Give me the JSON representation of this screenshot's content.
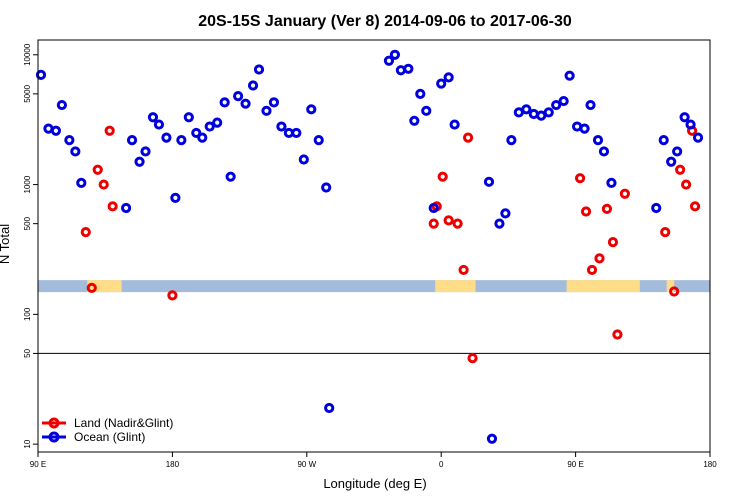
{
  "chart_data": {
    "type": "scatter",
    "title": "20S-15S January (Ver 8)   2014-09-06 to 2017-06-30",
    "xlabel": "Longitude (deg E)",
    "ylabel": "N Total",
    "xlim": [
      90,
      540
    ],
    "ylim": [
      8.7,
      13000
    ],
    "y_scale": "log",
    "x_ticks": [
      {
        "value": 90,
        "label": "90 E"
      },
      {
        "value": 180,
        "label": "180"
      },
      {
        "value": 270,
        "label": "90 W"
      },
      {
        "value": 360,
        "label": "0"
      },
      {
        "value": 450,
        "label": "90 E"
      },
      {
        "value": 540,
        "label": "180"
      }
    ],
    "y_ticks": [
      {
        "value": 10,
        "label": "10"
      },
      {
        "value": 50,
        "label": "50"
      },
      {
        "value": 100,
        "label": "100"
      },
      {
        "value": 500,
        "label": "500"
      },
      {
        "value": 1000,
        "label": "1000"
      },
      {
        "value": 5000,
        "label": "5000"
      },
      {
        "value": 10000,
        "label": "10000"
      }
    ],
    "reference_line": 50,
    "legend_position": "bottom-left",
    "land_strip": {
      "y": 165,
      "ocean_color": "#a4bcdc",
      "land_color": "#ffdd88",
      "land_ranges": [
        [
          123,
          146
        ],
        [
          356,
          383
        ],
        [
          444,
          493
        ],
        [
          511,
          516
        ]
      ]
    },
    "series": [
      {
        "name": "Land (Nadir&Glint)",
        "color": "#ee0000",
        "points": [
          [
            122,
            430
          ],
          [
            126,
            160
          ],
          [
            130,
            1300
          ],
          [
            134,
            1000
          ],
          [
            138,
            2600
          ],
          [
            140,
            680
          ],
          [
            180,
            140
          ],
          [
            355,
            500
          ],
          [
            357,
            680
          ],
          [
            361,
            1150
          ],
          [
            365,
            530
          ],
          [
            371,
            500
          ],
          [
            375,
            220
          ],
          [
            378,
            2300
          ],
          [
            381,
            46
          ],
          [
            453,
            1120
          ],
          [
            457,
            620
          ],
          [
            461,
            220
          ],
          [
            466,
            270
          ],
          [
            471,
            650
          ],
          [
            475,
            360
          ],
          [
            478,
            70
          ],
          [
            483,
            850
          ],
          [
            510,
            430
          ],
          [
            516,
            150
          ],
          [
            520,
            1300
          ],
          [
            524,
            1000
          ],
          [
            528,
            2600
          ],
          [
            530,
            680
          ]
        ]
      },
      {
        "name": "Ocean (Glint)",
        "color": "#0000dd",
        "points": [
          [
            92,
            7000
          ],
          [
            97,
            2700
          ],
          [
            102,
            2600
          ],
          [
            106,
            4100
          ],
          [
            111,
            2200
          ],
          [
            115,
            1800
          ],
          [
            119,
            1030
          ],
          [
            149,
            660
          ],
          [
            153,
            2200
          ],
          [
            158,
            1500
          ],
          [
            162,
            1800
          ],
          [
            167,
            3300
          ],
          [
            171,
            2900
          ],
          [
            176,
            2300
          ],
          [
            182,
            790
          ],
          [
            186,
            2200
          ],
          [
            191,
            3300
          ],
          [
            196,
            2500
          ],
          [
            200,
            2300
          ],
          [
            205,
            2800
          ],
          [
            210,
            3000
          ],
          [
            215,
            4300
          ],
          [
            219,
            1150
          ],
          [
            224,
            4800
          ],
          [
            229,
            4200
          ],
          [
            234,
            5800
          ],
          [
            238,
            7700
          ],
          [
            243,
            3700
          ],
          [
            248,
            4300
          ],
          [
            253,
            2800
          ],
          [
            258,
            2500
          ],
          [
            263,
            2500
          ],
          [
            268,
            1560
          ],
          [
            273,
            3800
          ],
          [
            278,
            2200
          ],
          [
            283,
            950
          ],
          [
            285,
            19
          ],
          [
            325,
            9000
          ],
          [
            329,
            10000
          ],
          [
            333,
            7600
          ],
          [
            338,
            7800
          ],
          [
            342,
            3100
          ],
          [
            346,
            5000
          ],
          [
            350,
            3700
          ],
          [
            355,
            660
          ],
          [
            360,
            6000
          ],
          [
            365,
            6700
          ],
          [
            369,
            2900
          ],
          [
            392,
            1050
          ],
          [
            394,
            11
          ],
          [
            399,
            500
          ],
          [
            403,
            600
          ],
          [
            407,
            2200
          ],
          [
            412,
            3600
          ],
          [
            417,
            3800
          ],
          [
            422,
            3500
          ],
          [
            427,
            3400
          ],
          [
            432,
            3600
          ],
          [
            437,
            4100
          ],
          [
            442,
            4400
          ],
          [
            446,
            6900
          ],
          [
            451,
            2800
          ],
          [
            456,
            2700
          ],
          [
            460,
            4100
          ],
          [
            465,
            2200
          ],
          [
            469,
            1800
          ],
          [
            474,
            1030
          ],
          [
            504,
            660
          ],
          [
            509,
            2200
          ],
          [
            514,
            1500
          ],
          [
            518,
            1800
          ],
          [
            523,
            3300
          ],
          [
            527,
            2900
          ],
          [
            532,
            2300
          ]
        ]
      }
    ]
  }
}
